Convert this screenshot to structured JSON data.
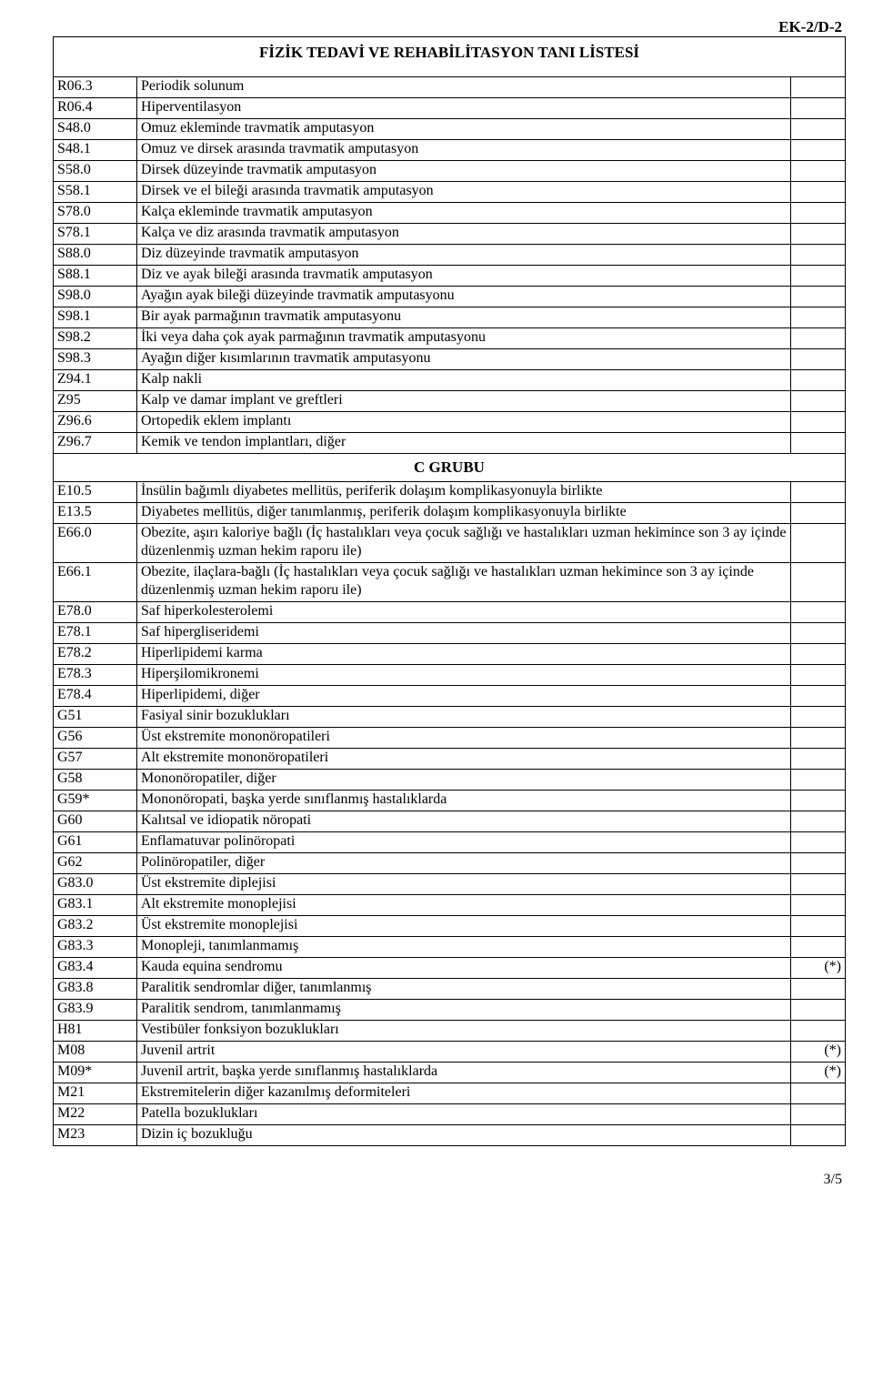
{
  "header_code": "EK-2/D-2",
  "title": "FİZİK TEDAVİ VE REHABİLİTASYON TANI LİSTESİ",
  "group_label": "C GRUBU",
  "footer": "3/5",
  "rows_top": [
    {
      "code": "R06.3",
      "desc": "Periodik solunum",
      "mark": ""
    },
    {
      "code": "R06.4",
      "desc": "Hiperventilasyon",
      "mark": ""
    },
    {
      "code": "S48.0",
      "desc": "Omuz ekleminde travmatik amputasyon",
      "mark": ""
    },
    {
      "code": "S48.1",
      "desc": "Omuz ve dirsek arasında travmatik amputasyon",
      "mark": ""
    },
    {
      "code": "S58.0",
      "desc": "Dirsek düzeyinde travmatik amputasyon",
      "mark": ""
    },
    {
      "code": "S58.1",
      "desc": "Dirsek ve el bileği arasında travmatik amputasyon",
      "mark": ""
    },
    {
      "code": "S78.0",
      "desc": "Kalça ekleminde travmatik amputasyon",
      "mark": ""
    },
    {
      "code": "S78.1",
      "desc": "Kalça ve diz arasında travmatik amputasyon",
      "mark": ""
    },
    {
      "code": "S88.0",
      "desc": "Diz düzeyinde travmatik amputasyon",
      "mark": ""
    },
    {
      "code": "S88.1",
      "desc": "Diz ve ayak bileği arasında travmatik amputasyon",
      "mark": ""
    },
    {
      "code": "S98.0",
      "desc": "Ayağın ayak bileği düzeyinde travmatik amputasyonu",
      "mark": ""
    },
    {
      "code": "S98.1",
      "desc": "Bir ayak parmağının travmatik amputasyonu",
      "mark": ""
    },
    {
      "code": "S98.2",
      "desc": "İki veya daha çok ayak parmağının travmatik amputasyonu",
      "mark": ""
    },
    {
      "code": "S98.3",
      "desc": "Ayağın diğer kısımlarının travmatik amputasyonu",
      "mark": ""
    },
    {
      "code": "Z94.1",
      "desc": "Kalp nakli",
      "mark": ""
    },
    {
      "code": "Z95",
      "desc": "Kalp ve damar implant ve greftleri",
      "mark": ""
    },
    {
      "code": "Z96.6",
      "desc": "Ortopedik eklem implantı",
      "mark": ""
    },
    {
      "code": "Z96.7",
      "desc": "Kemik ve tendon implantları, diğer",
      "mark": ""
    }
  ],
  "rows_bottom": [
    {
      "code": "E10.5",
      "desc": "İnsülin bağımlı diyabetes mellitüs, periferik dolaşım komplikasyonuyla birlikte",
      "mark": ""
    },
    {
      "code": "E13.5",
      "desc": "Diyabetes mellitüs, diğer tanımlanmış, periferik dolaşım komplikasyonuyla birlikte",
      "mark": ""
    },
    {
      "code": "E66.0",
      "desc": "Obezite, aşırı kaloriye bağlı (İç hastalıkları veya çocuk sağlığı ve hastalıkları uzman hekimince son 3 ay içinde düzenlenmiş uzman hekim raporu ile)",
      "mark": ""
    },
    {
      "code": "E66.1",
      "desc": "Obezite, ilaçlara-bağlı (İç hastalıkları veya çocuk sağlığı ve hastalıkları uzman hekimince son 3 ay içinde düzenlenmiş uzman hekim raporu ile)",
      "mark": ""
    },
    {
      "code": "E78.0",
      "desc": "Saf hiperkolesterolemi",
      "mark": ""
    },
    {
      "code": "E78.1",
      "desc": "Saf hipergliseridemi",
      "mark": ""
    },
    {
      "code": "E78.2",
      "desc": "Hiperlipidemi karma",
      "mark": ""
    },
    {
      "code": "E78.3",
      "desc": "Hiperşilomikronemi",
      "mark": ""
    },
    {
      "code": "E78.4",
      "desc": "Hiperlipidemi, diğer",
      "mark": ""
    },
    {
      "code": "G51",
      "desc": "Fasiyal sinir bozuklukları",
      "mark": ""
    },
    {
      "code": "G56",
      "desc": "Üst ekstremite mononöropatileri",
      "mark": ""
    },
    {
      "code": "G57",
      "desc": "Alt ekstremite mononöropatileri",
      "mark": ""
    },
    {
      "code": "G58",
      "desc": "Mononöropatiler, diğer",
      "mark": ""
    },
    {
      "code": "G59*",
      "desc": "Mononöropati, başka yerde sınıflanmış hastalıklarda",
      "mark": ""
    },
    {
      "code": "G60",
      "desc": "Kalıtsal ve idiopatik nöropati",
      "mark": ""
    },
    {
      "code": "G61",
      "desc": "Enflamatuvar polinöropati",
      "mark": ""
    },
    {
      "code": "G62",
      "desc": "Polinöropatiler, diğer",
      "mark": ""
    },
    {
      "code": "G83.0",
      "desc": "Üst ekstremite diplejisi",
      "mark": ""
    },
    {
      "code": "G83.1",
      "desc": "Alt ekstremite monoplejisi",
      "mark": ""
    },
    {
      "code": "G83.2",
      "desc": "Üst ekstremite monoplejisi",
      "mark": ""
    },
    {
      "code": "G83.3",
      "desc": "Monopleji, tanımlanmamış",
      "mark": ""
    },
    {
      "code": "G83.4",
      "desc": "Kauda equina sendromu",
      "mark": "(*)"
    },
    {
      "code": "G83.8",
      "desc": "Paralitik sendromlar diğer, tanımlanmış",
      "mark": ""
    },
    {
      "code": "G83.9",
      "desc": "Paralitik sendrom, tanımlanmamış",
      "mark": ""
    },
    {
      "code": "H81",
      "desc": "Vestibüler fonksiyon bozuklukları",
      "mark": ""
    },
    {
      "code": "M08",
      "desc": "Juvenil  artrit",
      "mark": "(*)"
    },
    {
      "code": "M09*",
      "desc": "Juvenil artrit, başka yerde sınıflanmış hastalıklarda",
      "mark": "(*)"
    },
    {
      "code": "M21",
      "desc": "Ekstremitelerin diğer kazanılmış deformiteleri",
      "mark": ""
    },
    {
      "code": "M22",
      "desc": "Patella bozuklukları",
      "mark": ""
    },
    {
      "code": "M23",
      "desc": "Dizin iç bozukluğu",
      "mark": ""
    }
  ]
}
